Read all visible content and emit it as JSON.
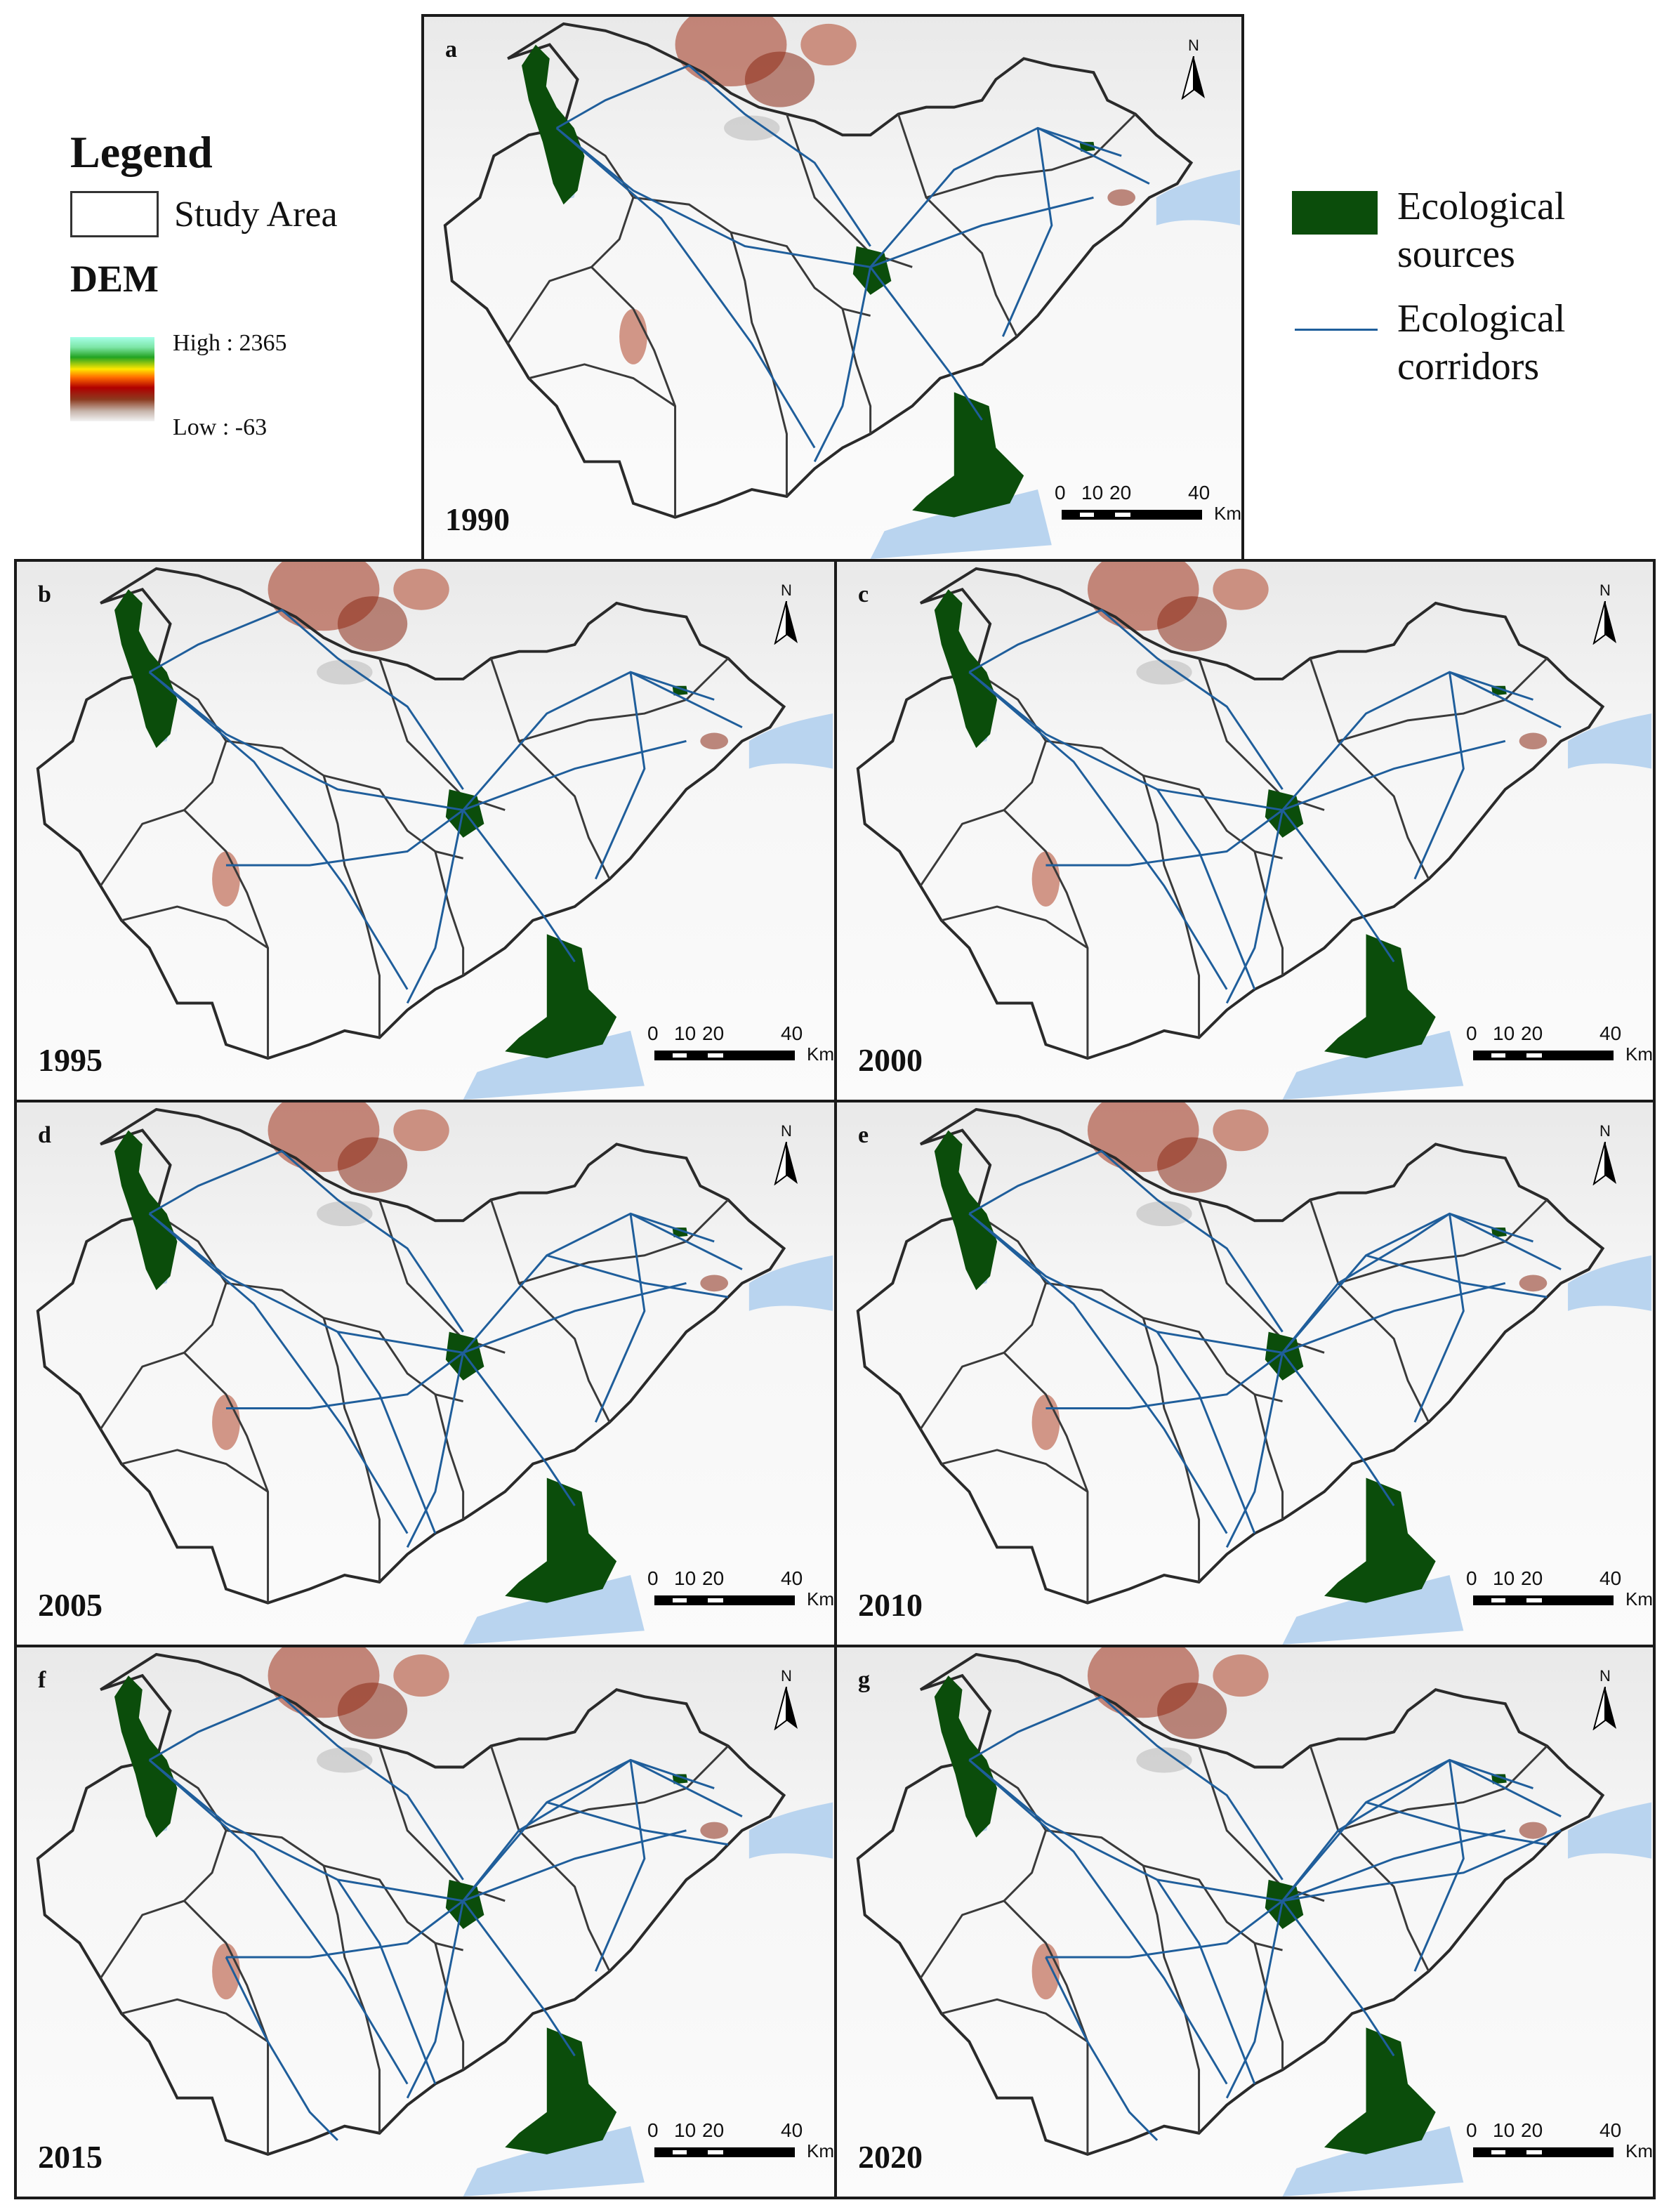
{
  "legend": {
    "title": "Legend",
    "study_area": "Study Area",
    "dem_title": "DEM",
    "dem_high": "High : 2365",
    "dem_low": "Low : -63",
    "ecological_sources_line1": "Ecological",
    "ecological_sources_line2": "sources",
    "ecological_corridors_line1": "Ecological",
    "ecological_corridors_line2": "corridors",
    "source_color": "#0b4d0b",
    "corridor_color": "#1f5e9b",
    "dem_ramp_icon": "dem-color-ramp"
  },
  "panels": [
    {
      "label": "a",
      "year": "1990"
    },
    {
      "label": "b",
      "year": "1995"
    },
    {
      "label": "c",
      "year": "2000"
    },
    {
      "label": "d",
      "year": "2005"
    },
    {
      "label": "e",
      "year": "2010"
    },
    {
      "label": "f",
      "year": "2015"
    },
    {
      "label": "g",
      "year": "2020"
    }
  ],
  "north_arrow": {
    "letter": "N",
    "icon": "north-arrow-icon"
  },
  "scale_bar": {
    "ticks": [
      "0",
      "10",
      "20",
      "40"
    ],
    "unit": "Km"
  }
}
